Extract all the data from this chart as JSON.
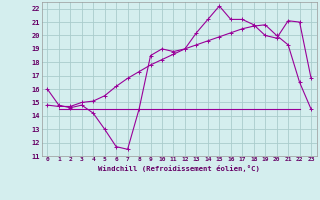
{
  "bg_color": "#d4eeee",
  "grid_color": "#aacccc",
  "line_color": "#990099",
  "x_label": "Windchill (Refroidissement éolien,°C)",
  "ylim": [
    11,
    22.5
  ],
  "xlim": [
    -0.5,
    23.5
  ],
  "yticks": [
    11,
    12,
    13,
    14,
    15,
    16,
    17,
    18,
    19,
    20,
    21,
    22
  ],
  "xticks": [
    0,
    1,
    2,
    3,
    4,
    5,
    6,
    7,
    8,
    9,
    10,
    11,
    12,
    13,
    14,
    15,
    16,
    17,
    18,
    19,
    20,
    21,
    22,
    23
  ],
  "line1_x": [
    0,
    1,
    2,
    3,
    4,
    5,
    6,
    7,
    8,
    9,
    10,
    11,
    12,
    13,
    14,
    15,
    16,
    17,
    18,
    19,
    20,
    21,
    22,
    23
  ],
  "line1_y": [
    16.0,
    14.8,
    14.6,
    14.8,
    14.2,
    13.0,
    11.7,
    11.5,
    14.5,
    18.5,
    19.0,
    18.8,
    19.0,
    20.2,
    21.2,
    22.2,
    21.2,
    21.2,
    20.8,
    20.0,
    19.8,
    21.1,
    21.0,
    16.8
  ],
  "line2_x": [
    0,
    1,
    2,
    3,
    4,
    5,
    6,
    7,
    8,
    9,
    10,
    11,
    12,
    13,
    14,
    15,
    16,
    17,
    18,
    19,
    20,
    21,
    22,
    23
  ],
  "line2_y": [
    14.8,
    14.7,
    14.7,
    15.0,
    15.1,
    15.5,
    16.2,
    16.8,
    17.3,
    17.8,
    18.2,
    18.6,
    19.0,
    19.3,
    19.6,
    19.9,
    20.2,
    20.5,
    20.7,
    20.8,
    20.0,
    19.3,
    16.5,
    14.5
  ],
  "line3_x": [
    1,
    22
  ],
  "line3_y": [
    14.5,
    14.5
  ]
}
